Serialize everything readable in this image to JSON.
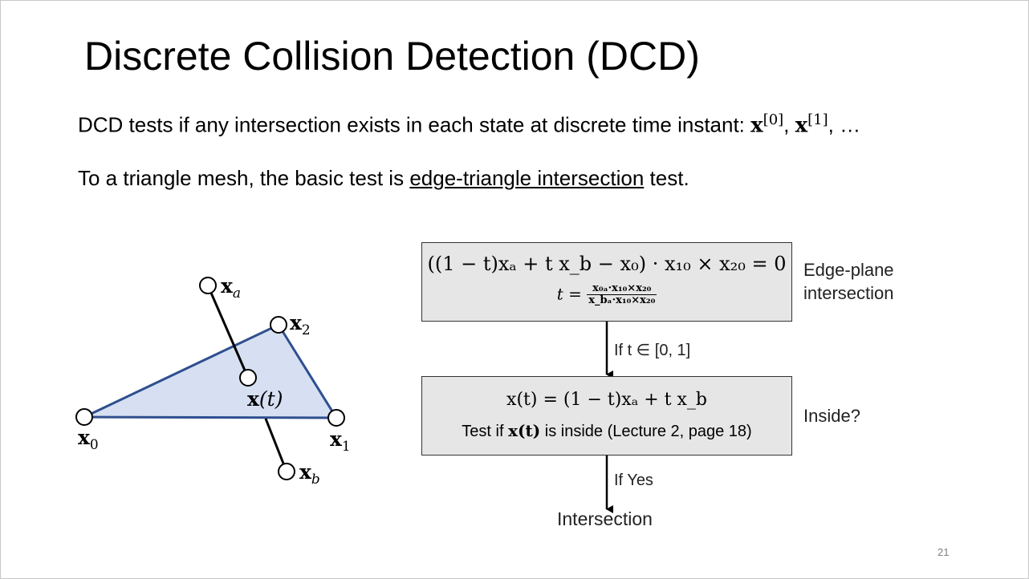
{
  "title": "Discrete Collision Detection (DCD)",
  "intro": {
    "line1_text": "DCD tests if any intersection exists in each state at discrete time instant:",
    "line1_x": "x",
    "line1_s0": "[0]",
    "line1_comma": ",",
    "line1_s1": "[1]",
    "line1_tail": ", …",
    "line2_before": "To a triangle mesh, the basic test is",
    "line2_link": "edge-triangle intersection",
    "line2_after": "test."
  },
  "diagram": {
    "labels": {
      "xa": "a",
      "x2": "2",
      "xt": "(t)",
      "x0": "0",
      "x1": "1",
      "xb": "b",
      "x": "x"
    },
    "colors": {
      "triangle_fill": "#d6e0f2",
      "triangle_stroke": "#2f4f8f",
      "edge": "#000000"
    }
  },
  "flowchart": {
    "step1": {
      "equation": "((1 − t)xₐ + t x_b − x₀) · x₁₀ × x₂₀ = 0",
      "t_label": "t =",
      "t_num": "x₀ₐ·x₁₀×x₂₀",
      "t_den": "x_bₐ·x₁₀×x₂₀",
      "label_line1": "Edge-plane",
      "label_line2": "intersection"
    },
    "arrow1_label": "If t ∈ [0, 1]",
    "step2": {
      "equation": "x(t) = (1 − t)xₐ + t x_b",
      "test_before": "Test if",
      "test_expr": "x(t)",
      "test_after": "is inside (Lecture 2, page 18)",
      "label": "Inside?"
    },
    "arrow2_label": "If Yes",
    "result": "Intersection"
  },
  "page_number": "21"
}
